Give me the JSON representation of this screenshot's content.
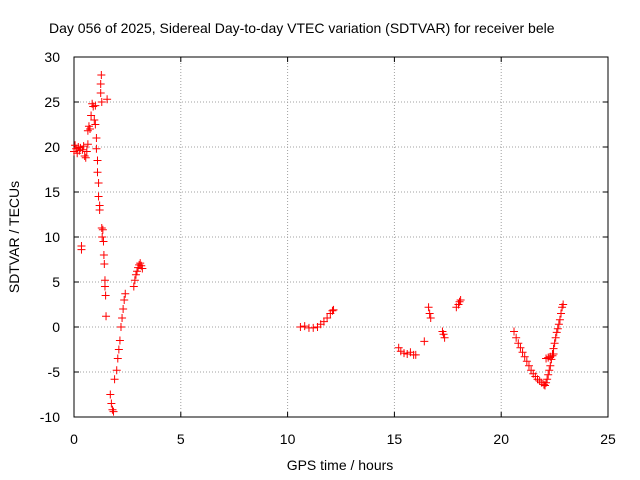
{
  "chart_data": {
    "type": "scatter",
    "title": "Day 056 of 2025, Sidereal Day-to-day VTEC variation (SDTVAR) for receiver bele",
    "xlabel": "GPS time / hours",
    "ylabel": "SDTVAR / TECUs",
    "xlim": [
      0,
      25
    ],
    "ylim": [
      -10,
      30
    ],
    "xticks": [
      0,
      5,
      10,
      15,
      20,
      25
    ],
    "yticks": [
      -10,
      -5,
      0,
      5,
      10,
      15,
      20,
      25,
      30
    ],
    "grid": true,
    "marker": "+",
    "colors": {
      "series": "#ff0000",
      "grid": "#a0a0a0",
      "axes": "#000000"
    },
    "series": [
      {
        "name": "SDTVAR",
        "points": [
          [
            0.0,
            19.5
          ],
          [
            0.05,
            20.2
          ],
          [
            0.1,
            19.8
          ],
          [
            0.15,
            19.3
          ],
          [
            0.2,
            20.0
          ],
          [
            0.25,
            19.6
          ],
          [
            0.3,
            19.9
          ],
          [
            0.35,
            8.6
          ],
          [
            0.35,
            9.0
          ],
          [
            0.4,
            19.7
          ],
          [
            0.45,
            20.1
          ],
          [
            0.5,
            19.0
          ],
          [
            0.55,
            18.8
          ],
          [
            0.6,
            19.5
          ],
          [
            0.65,
            20.3
          ],
          [
            0.65,
            21.8
          ],
          [
            0.7,
            22.3
          ],
          [
            0.75,
            22.0
          ],
          [
            0.8,
            23.5
          ],
          [
            0.85,
            24.8
          ],
          [
            0.9,
            24.5
          ],
          [
            0.95,
            23.0
          ],
          [
            1.0,
            24.6
          ],
          [
            1.0,
            22.5
          ],
          [
            1.05,
            21.0
          ],
          [
            1.05,
            19.8
          ],
          [
            1.1,
            18.5
          ],
          [
            1.1,
            17.2
          ],
          [
            1.15,
            16.0
          ],
          [
            1.15,
            14.5
          ],
          [
            1.2,
            13.5
          ],
          [
            1.2,
            13.0
          ],
          [
            1.25,
            26.0
          ],
          [
            1.25,
            27.0
          ],
          [
            1.28,
            28.0
          ],
          [
            1.3,
            25.0
          ],
          [
            1.3,
            11.0
          ],
          [
            1.32,
            10.0
          ],
          [
            1.35,
            10.8
          ],
          [
            1.38,
            9.5
          ],
          [
            1.4,
            8.0
          ],
          [
            1.42,
            7.0
          ],
          [
            1.45,
            5.2
          ],
          [
            1.45,
            4.5
          ],
          [
            1.48,
            3.5
          ],
          [
            1.5,
            1.2
          ],
          [
            1.55,
            25.3
          ],
          [
            1.7,
            -7.5
          ],
          [
            1.75,
            -8.5
          ],
          [
            1.8,
            -9.2
          ],
          [
            1.85,
            -9.4
          ],
          [
            1.9,
            -5.8
          ],
          [
            2.0,
            -4.8
          ],
          [
            2.05,
            -3.5
          ],
          [
            2.1,
            -2.5
          ],
          [
            2.15,
            -1.5
          ],
          [
            2.2,
            0.0
          ],
          [
            2.25,
            1.0
          ],
          [
            2.3,
            2.0
          ],
          [
            2.35,
            3.0
          ],
          [
            2.4,
            3.7
          ],
          [
            2.8,
            4.5
          ],
          [
            2.85,
            5.2
          ],
          [
            2.9,
            5.8
          ],
          [
            2.95,
            6.2
          ],
          [
            3.0,
            6.6
          ],
          [
            3.05,
            6.9
          ],
          [
            3.1,
            7.1
          ],
          [
            3.15,
            6.8
          ],
          [
            3.2,
            6.5
          ],
          [
            10.6,
            0.0
          ],
          [
            10.8,
            0.1
          ],
          [
            11.0,
            -0.1
          ],
          [
            11.2,
            -0.1
          ],
          [
            11.4,
            0.0
          ],
          [
            11.55,
            0.3
          ],
          [
            11.7,
            0.6
          ],
          [
            11.85,
            1.0
          ],
          [
            12.0,
            1.5
          ],
          [
            12.1,
            1.8
          ],
          [
            12.15,
            1.9
          ],
          [
            15.2,
            -2.3
          ],
          [
            15.3,
            -2.7
          ],
          [
            15.45,
            -2.9
          ],
          [
            15.6,
            -3.0
          ],
          [
            15.75,
            -2.8
          ],
          [
            15.9,
            -3.1
          ],
          [
            16.0,
            -3.1
          ],
          [
            16.4,
            -1.6
          ],
          [
            16.6,
            2.2
          ],
          [
            16.65,
            1.5
          ],
          [
            16.7,
            1.0
          ],
          [
            17.25,
            -0.5
          ],
          [
            17.3,
            -0.8
          ],
          [
            17.35,
            -1.2
          ],
          [
            17.9,
            2.2
          ],
          [
            18.0,
            2.5
          ],
          [
            18.05,
            2.8
          ],
          [
            18.1,
            3.0
          ],
          [
            20.6,
            -0.5
          ],
          [
            20.7,
            -1.2
          ],
          [
            20.8,
            -1.8
          ],
          [
            20.9,
            -2.3
          ],
          [
            21.0,
            -2.8
          ],
          [
            21.1,
            -3.3
          ],
          [
            21.2,
            -3.8
          ],
          [
            21.3,
            -4.3
          ],
          [
            21.4,
            -4.8
          ],
          [
            21.5,
            -5.2
          ],
          [
            21.6,
            -5.5
          ],
          [
            21.7,
            -5.8
          ],
          [
            21.8,
            -6.0
          ],
          [
            21.9,
            -6.2
          ],
          [
            22.0,
            -6.4
          ],
          [
            22.05,
            -6.5
          ],
          [
            22.1,
            -6.2
          ],
          [
            22.15,
            -5.8
          ],
          [
            22.2,
            -5.3
          ],
          [
            22.25,
            -4.8
          ],
          [
            22.3,
            -4.3
          ],
          [
            22.35,
            -3.6
          ],
          [
            22.4,
            -3.0
          ],
          [
            22.45,
            -2.4
          ],
          [
            22.5,
            -1.8
          ],
          [
            22.55,
            -1.2
          ],
          [
            22.6,
            -0.6
          ],
          [
            22.65,
            -0.2
          ],
          [
            22.7,
            0.3
          ],
          [
            22.75,
            0.8
          ],
          [
            22.8,
            1.5
          ],
          [
            22.85,
            2.2
          ],
          [
            22.9,
            2.5
          ],
          [
            22.1,
            -3.5
          ],
          [
            22.2,
            -3.4
          ],
          [
            22.3,
            -3.3
          ],
          [
            22.4,
            -3.2
          ],
          [
            22.45,
            -3.0
          ]
        ]
      }
    ]
  }
}
